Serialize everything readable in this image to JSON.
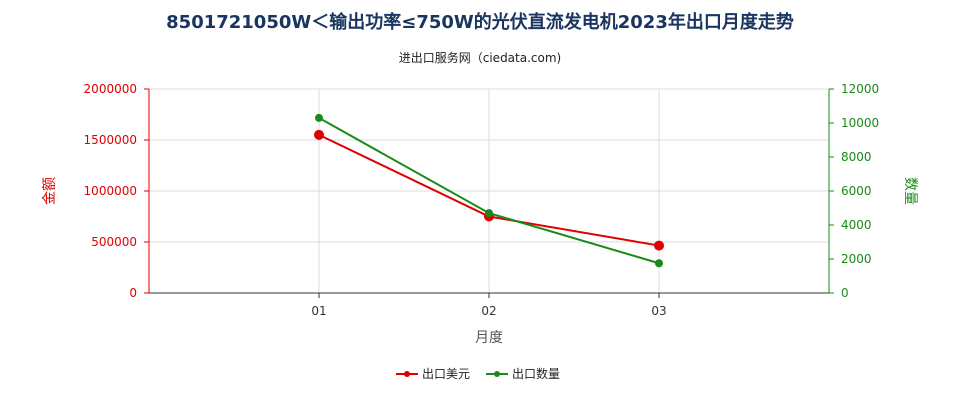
{
  "header": {
    "title": "8501721050W＜输出功率≤750W的光伏直流发电机2023年出口月度走势",
    "subtitle": "进出口服务网（ciedata.com)"
  },
  "chart_data": {
    "type": "line",
    "title": "8501721050W＜输出功率≤750W的光伏直流发电机2023年出口月度走势",
    "subtitle": "进出口服务网（ciedata.com)",
    "categories": [
      "01",
      "02",
      "03"
    ],
    "xlabel": "月度",
    "ylabel_left": "金额",
    "ylabel_right": "数量",
    "ylim_left": [
      0,
      2000000
    ],
    "ylim_right": [
      0,
      12000
    ],
    "yticks_left": [
      "0",
      "500000",
      "1000000",
      "1500000",
      "2000000"
    ],
    "yticks_right": [
      "0",
      "2000",
      "4000",
      "6000",
      "8000",
      "10000",
      "12000"
    ],
    "grid": true,
    "legend_position": "bottom",
    "series": [
      {
        "name": "出口美元",
        "axis": "left",
        "color": "#e00000",
        "values": [
          1550000,
          750000,
          465000
        ]
      },
      {
        "name": "出口数量",
        "axis": "right",
        "color": "#1a8a1a",
        "values": [
          10300,
          4700,
          1750
        ]
      }
    ]
  }
}
